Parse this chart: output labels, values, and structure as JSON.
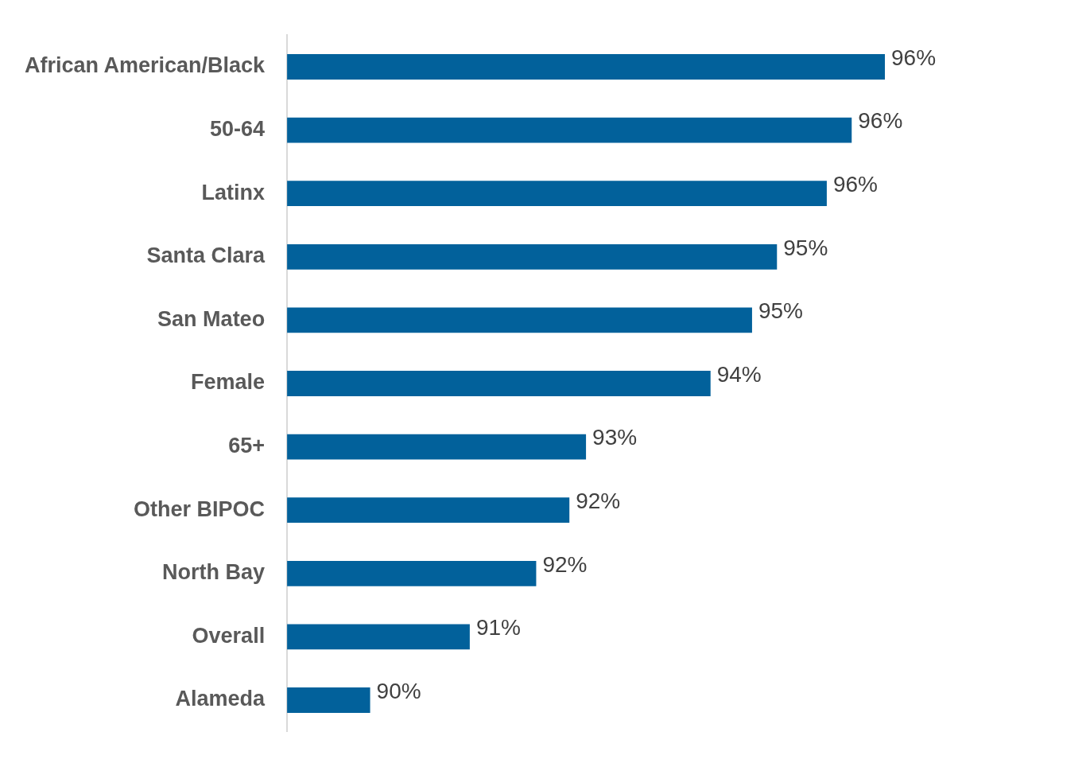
{
  "chart_data": {
    "type": "bar",
    "orientation": "horizontal",
    "categories": [
      "African American/Black",
      "50-64",
      "Latinx",
      "Santa Clara",
      "San Mateo",
      "Female",
      "65+",
      "Other BIPOC",
      "North Bay",
      "Overall",
      "Alameda"
    ],
    "values": [
      96.2,
      95.8,
      95.5,
      94.9,
      94.6,
      94.1,
      92.6,
      92.4,
      92.0,
      91.2,
      90.0
    ],
    "value_labels": [
      "96%",
      "96%",
      "96%",
      "95%",
      "95%",
      "94%",
      "93%",
      "92%",
      "92%",
      "91%",
      "90%"
    ],
    "color": "#02619b",
    "tick_labels": "y",
    "grid": false
  }
}
